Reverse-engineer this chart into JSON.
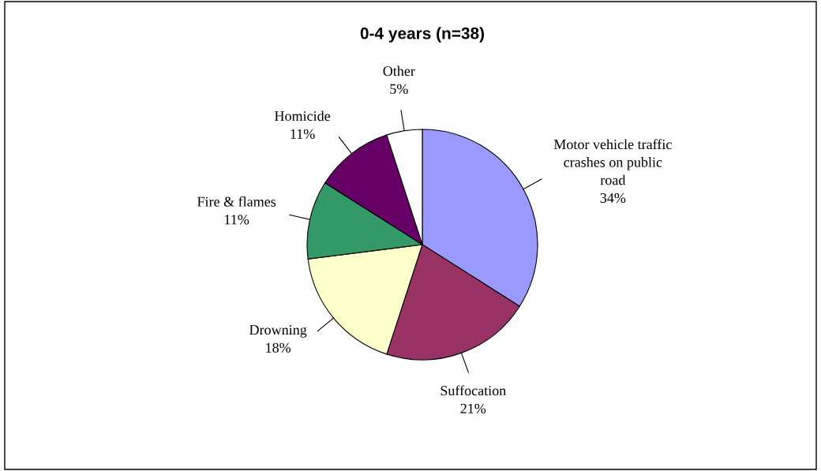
{
  "chart_data": {
    "type": "pie",
    "title": "0-4 years (n=38)",
    "categories": [
      "Motor vehicle traffic\ncrashes on public\nroad",
      "Suffocation",
      "Drowning",
      "Fire & flames",
      "Homicide",
      "Other"
    ],
    "values": [
      34,
      21,
      18,
      11,
      11,
      5
    ],
    "value_labels": [
      "34%",
      "21%",
      "18%",
      "11%",
      "11%",
      "5%"
    ],
    "colors": [
      "#9999ff",
      "#993366",
      "#ffffcc",
      "#339966",
      "#660066",
      "#ffffff"
    ]
  }
}
